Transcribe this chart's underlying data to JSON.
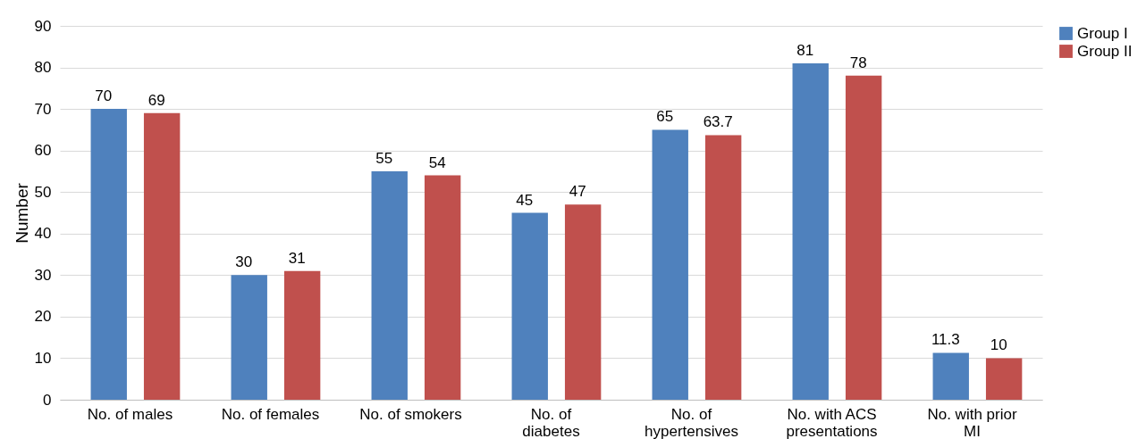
{
  "chart_data": {
    "type": "bar",
    "ylabel": "Number",
    "categories": [
      "No. of males",
      "No. of females",
      "No. of smokers",
      "No. of diabetes",
      "No. of hypertensives",
      "No. with ACS presentations",
      "No. with prior MI"
    ],
    "series": [
      {
        "name": "Group I",
        "color": "#4f81bd",
        "values": [
          70,
          30,
          55,
          45,
          65,
          81,
          11.3
        ]
      },
      {
        "name": "Group II",
        "color": "#c0504d",
        "values": [
          69,
          31,
          54,
          47,
          63.7,
          78,
          10
        ]
      }
    ],
    "ylim": [
      0,
      90
    ],
    "yticks": [
      0,
      10,
      20,
      30,
      40,
      50,
      60,
      70,
      80,
      90
    ],
    "grid": "y",
    "legend": "right",
    "data_labels": true
  }
}
